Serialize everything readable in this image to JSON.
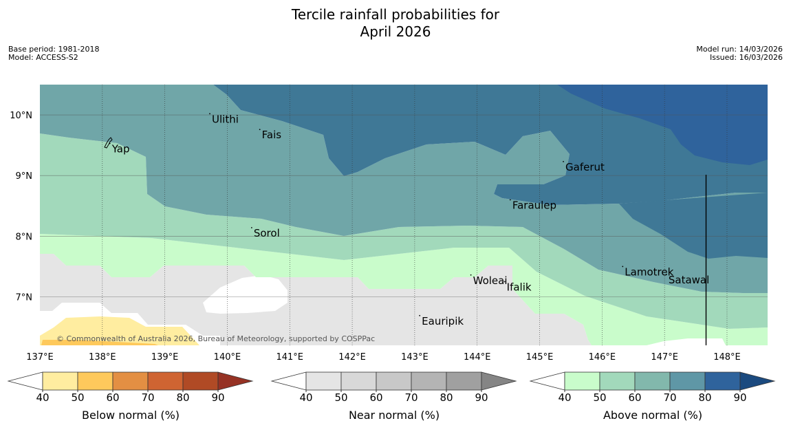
{
  "title": {
    "line1": "Tercile rainfall probabilities for",
    "line2": "April 2026"
  },
  "meta": {
    "base_period": "Base period: 1981-2018",
    "model": "Model: ACCESS-S2",
    "model_run": "Model run: 14/03/2026",
    "issued": "Issued: 16/03/2026"
  },
  "map": {
    "lon_labels": [
      "137°E",
      "138°E",
      "139°E",
      "140°E",
      "141°E",
      "142°E",
      "143°E",
      "144°E",
      "145°E",
      "146°E",
      "147°E",
      "148°E"
    ],
    "lat_labels": [
      "10°N",
      "9°N",
      "8°N",
      "7°N"
    ],
    "lon_range": [
      137,
      148.65
    ],
    "lat_range": [
      6.2,
      10.5
    ],
    "places": [
      {
        "name": "Ulithi",
        "lon": 139.72,
        "lat": 10.02
      },
      {
        "name": "Fais",
        "lon": 140.52,
        "lat": 9.76
      },
      {
        "name": "Yap",
        "lon": 138.12,
        "lat": 9.53
      },
      {
        "name": "Gaferut",
        "lon": 145.38,
        "lat": 9.23
      },
      {
        "name": "Faraulep",
        "lon": 144.53,
        "lat": 8.6
      },
      {
        "name": "Sorol",
        "lon": 140.39,
        "lat": 8.14
      },
      {
        "name": "Lamotrek",
        "lon": 146.33,
        "lat": 7.5
      },
      {
        "name": "Woleai",
        "lon": 143.9,
        "lat": 7.36
      },
      {
        "name": "Ifalik",
        "lon": 144.44,
        "lat": 7.25
      },
      {
        "name": "Satawal",
        "lon": 147.03,
        "lat": 7.37
      },
      {
        "name": "Eauripik",
        "lon": 143.08,
        "lat": 6.69
      }
    ],
    "copyright": "© Commonwealth of Australia 2026, Bureau of Meteorology, supported by COSPPac"
  },
  "colorbars": [
    {
      "id": "below",
      "label": "Below normal (%)",
      "ticks": [
        "40",
        "50",
        "60",
        "70",
        "80",
        "90"
      ],
      "colors": [
        "#ffeda0",
        "#fec95c",
        "#e38f43",
        "#cf6432",
        "#b04a25",
        "#963224"
      ]
    },
    {
      "id": "near",
      "label": "Near normal (%)",
      "ticks": [
        "40",
        "50",
        "60",
        "70",
        "80",
        "90"
      ],
      "colors": [
        "#e5e5e5",
        "#d8d8d8",
        "#c8c8c8",
        "#b4b4b4",
        "#a0a0a0",
        "#858585"
      ]
    },
    {
      "id": "above",
      "label": "Above normal (%)",
      "ticks": [
        "40",
        "50",
        "60",
        "70",
        "80",
        "90"
      ],
      "colors": [
        "#c9fccb",
        "#a2d9bb",
        "#82b8ac",
        "#5f97a6",
        "#2f639c",
        "#1b4a7f"
      ]
    }
  ]
}
